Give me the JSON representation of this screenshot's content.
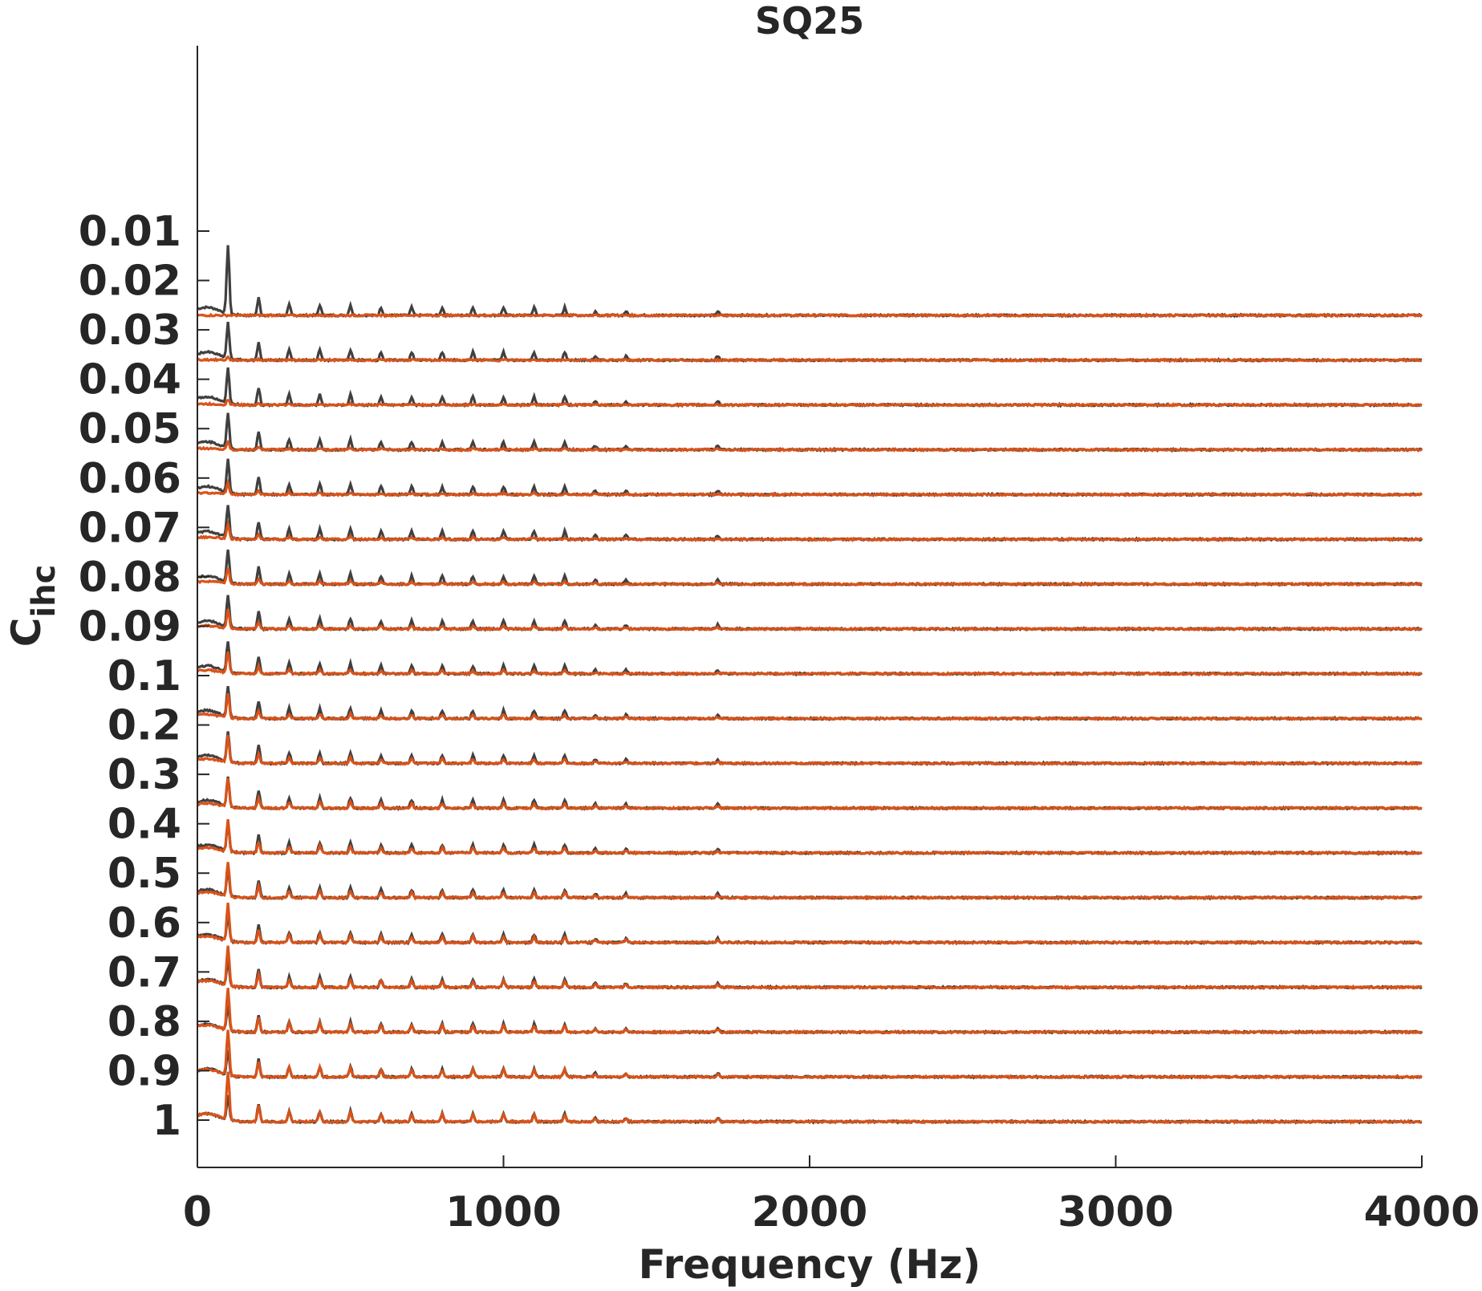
{
  "chart_data": {
    "type": "line",
    "title": "SQ25",
    "xlabel": "Frequency (Hz)",
    "ylabel": "C",
    "ylabel_subscript": "ihc",
    "xlim": [
      0,
      4000
    ],
    "x_ticks": [
      0,
      1000,
      2000,
      3000,
      4000
    ],
    "y_tick_labels": [
      "0.01",
      "0.02",
      "0.03",
      "0.04",
      "0.05",
      "0.06",
      "0.07",
      "0.08",
      "0.09",
      "0.1",
      "0.2",
      "0.3",
      "0.4",
      "0.5",
      "0.6",
      "0.7",
      "0.8",
      "0.9",
      "1"
    ],
    "y_tick_values": [
      0.01,
      0.02,
      0.03,
      0.04,
      0.05,
      0.06,
      0.07,
      0.08,
      0.09,
      0.1,
      0.2,
      0.3,
      0.4,
      0.5,
      0.6,
      0.7,
      0.8,
      0.9,
      1
    ],
    "grid": false,
    "legend": "none",
    "series": [
      {
        "color": "#404040"
      },
      {
        "color": "#D95319"
      }
    ],
    "harmonic_peaks_hz": [
      100,
      200,
      300,
      400,
      500,
      600,
      700,
      800,
      900,
      1000,
      1100,
      1200,
      1300,
      1400,
      1700
    ],
    "dominant_peak_hz": 100,
    "trace_x_max": 4000,
    "baseline_offset_per_trace": true
  }
}
